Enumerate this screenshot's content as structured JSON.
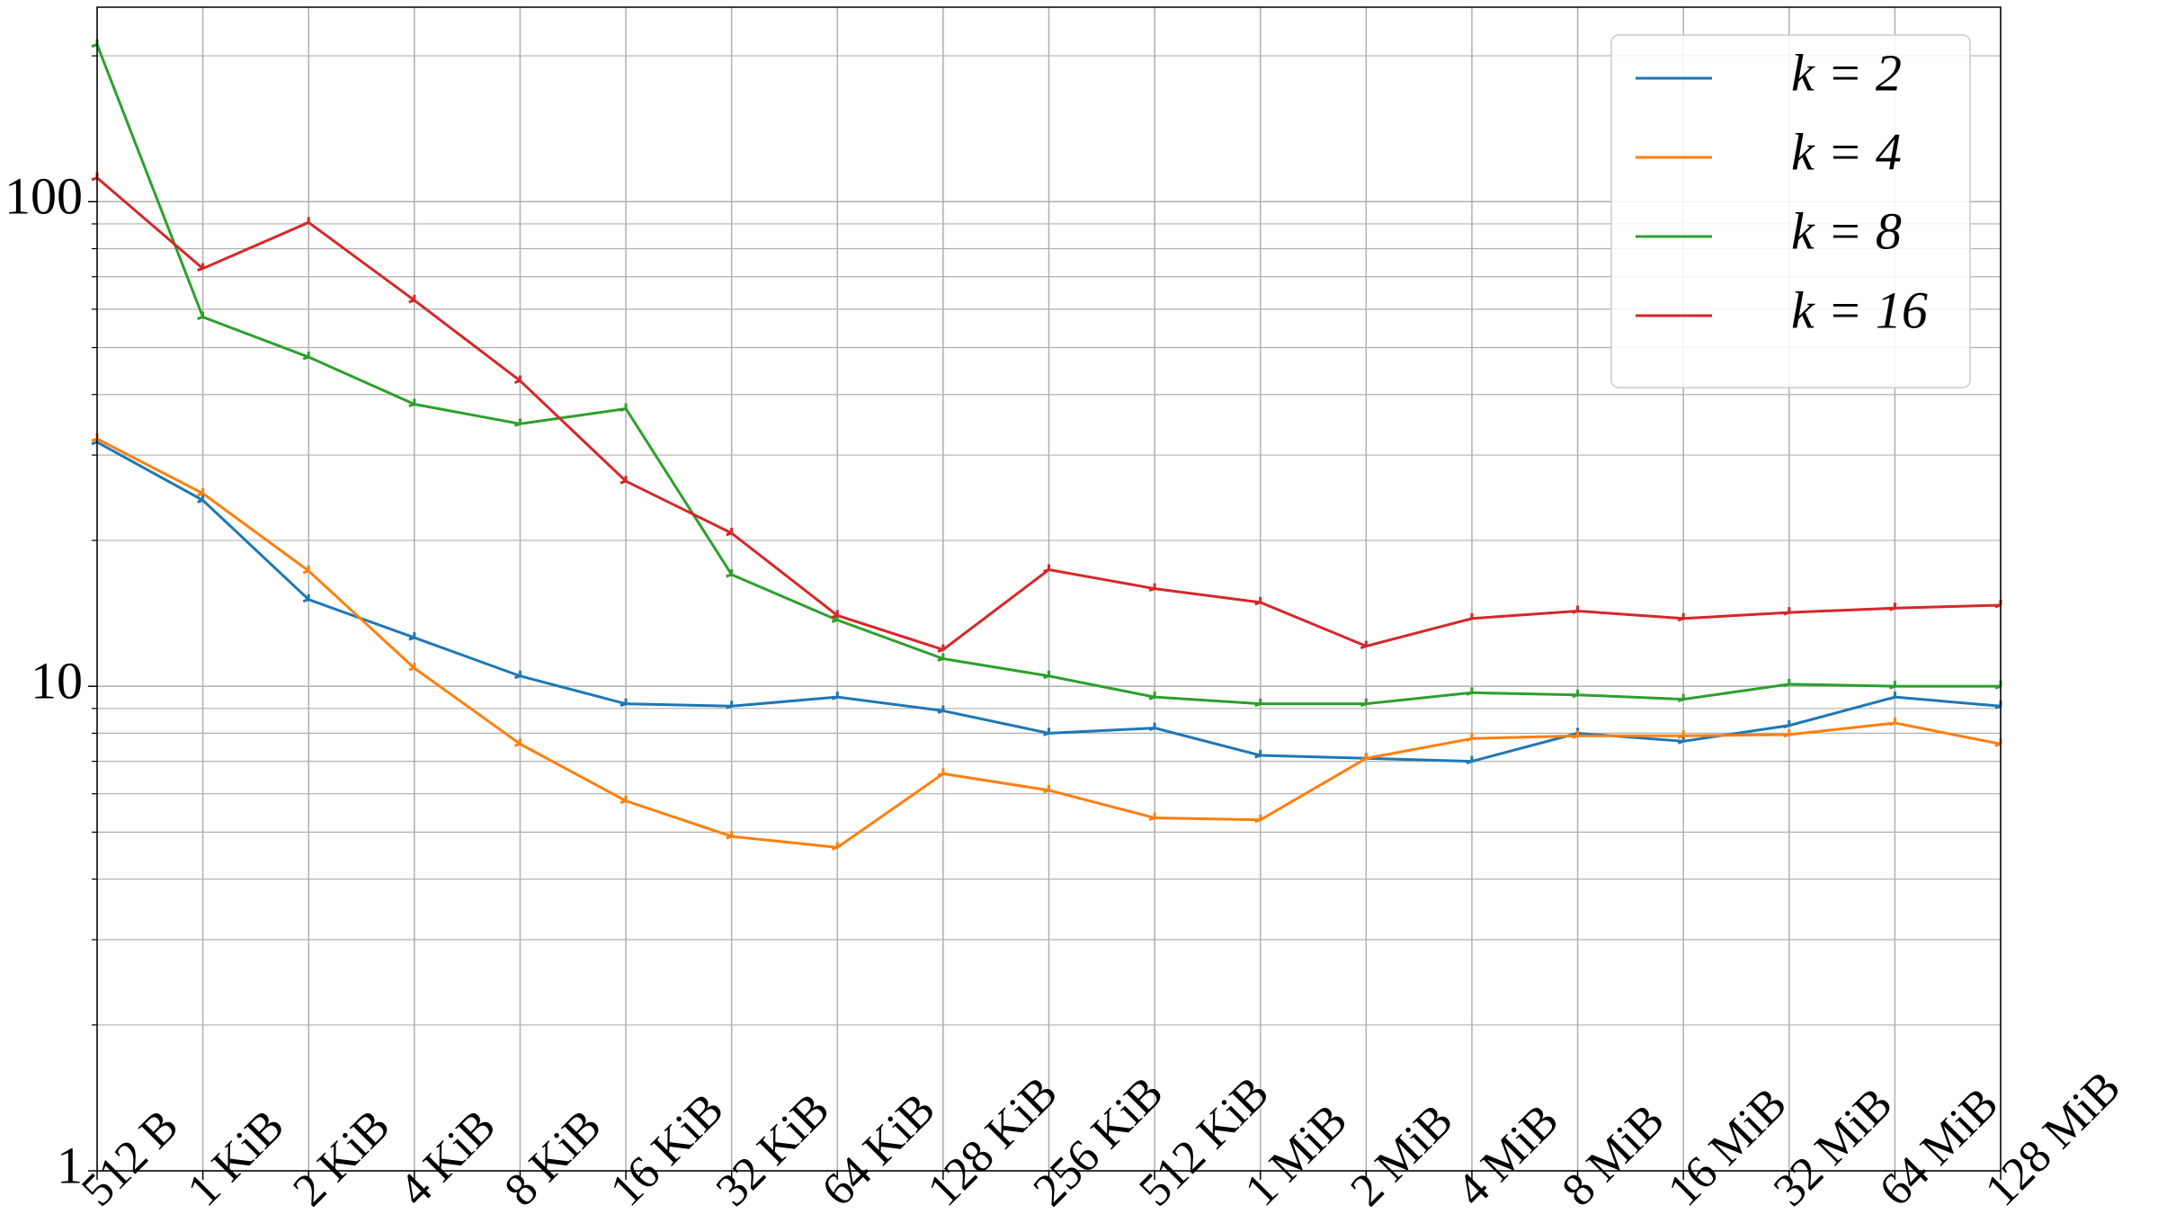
{
  "chart_data": {
    "type": "line",
    "categories": [
      "512 B",
      "1 KiB",
      "2 KiB",
      "4 KiB",
      "8 KiB",
      "16 KiB",
      "32 KiB",
      "64 KiB",
      "128 KiB",
      "256 KiB",
      "512 KiB",
      "1 MiB",
      "2 MiB",
      "4 MiB",
      "8 MiB",
      "16 MiB",
      "32 MiB",
      "64 MiB",
      "128 MiB"
    ],
    "series": [
      {
        "name": "k = 2",
        "color": "#1f77b4",
        "values": [
          31.9,
          24.2,
          15.1,
          12.6,
          10.5,
          9.2,
          9.1,
          9.5,
          8.9,
          8.0,
          8.2,
          7.2,
          7.1,
          7.0,
          8.0,
          7.7,
          8.3,
          9.5,
          9.1
        ]
      },
      {
        "name": "k = 4",
        "color": "#ff7f0e",
        "values": [
          32.4,
          25.0,
          17.3,
          10.9,
          7.6,
          5.8,
          4.9,
          4.65,
          6.6,
          6.1,
          5.35,
          5.3,
          7.1,
          7.8,
          7.9,
          7.9,
          7.95,
          8.4,
          7.6
        ]
      },
      {
        "name": "k = 8",
        "color": "#2ca02c",
        "values": [
          211,
          57.8,
          47.8,
          38.2,
          34.8,
          37.4,
          17.0,
          13.7,
          11.4,
          10.5,
          9.5,
          9.2,
          9.2,
          9.7,
          9.6,
          9.4,
          10.1,
          10.0,
          10.0
        ]
      },
      {
        "name": "k = 16",
        "color": "#d62728",
        "values": [
          112,
          72.8,
          90.6,
          62.6,
          42.7,
          26.5,
          20.7,
          14.0,
          11.9,
          17.4,
          15.9,
          14.9,
          12.1,
          13.8,
          14.3,
          13.8,
          14.2,
          14.5,
          14.7
        ]
      }
    ],
    "ylog": true,
    "ylim": [
      1,
      252
    ],
    "yticks": [
      1,
      10,
      100
    ],
    "yticks_minor": [
      2,
      3,
      4,
      5,
      6,
      7,
      8,
      9,
      20,
      30,
      40,
      50,
      60,
      70,
      80,
      90,
      200
    ],
    "grid": true,
    "legend": "upper right"
  }
}
